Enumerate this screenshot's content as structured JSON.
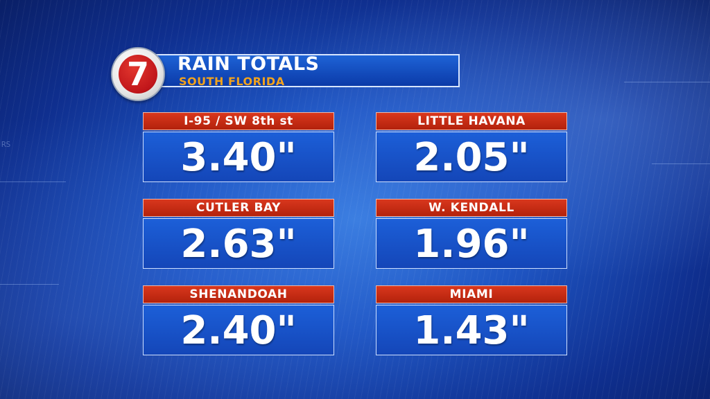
{
  "header": {
    "logo_text": "7",
    "title": "RAIN TOTALS",
    "subtitle": "SOUTH FLORIDA"
  },
  "locations": [
    {
      "name": "I-95 / SW 8th st",
      "total": "3.40\""
    },
    {
      "name": "LITTLE HAVANA",
      "total": "2.05\""
    },
    {
      "name": "CUTLER BAY",
      "total": "2.63\""
    },
    {
      "name": "W. KENDALL",
      "total": "1.96\""
    },
    {
      "name": "SHENANDOAH",
      "total": "2.40\""
    },
    {
      "name": "MIAMI",
      "total": "1.43\""
    }
  ],
  "colors": {
    "label_red": "#c72a12",
    "value_blue": "#1a55cc",
    "subtitle_gold": "#f2a31d"
  }
}
